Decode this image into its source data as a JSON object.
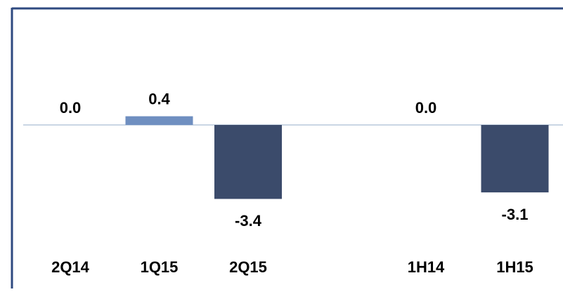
{
  "chart_data": {
    "type": "bar",
    "categories": [
      "2Q14",
      "1Q15",
      "2Q15",
      null,
      "1H14",
      "1H15"
    ],
    "values": [
      0,
      0.4,
      -3.4,
      null,
      0,
      -3.1
    ],
    "value_labels": [
      "0.0",
      "0.4",
      "-3.4",
      null,
      "0.0",
      "-3.1"
    ],
    "colors": [
      "#3b4b6b",
      "#6f8fc0",
      "#3b4b6b",
      null,
      "#3b4b6b",
      "#3b4b6b"
    ]
  }
}
